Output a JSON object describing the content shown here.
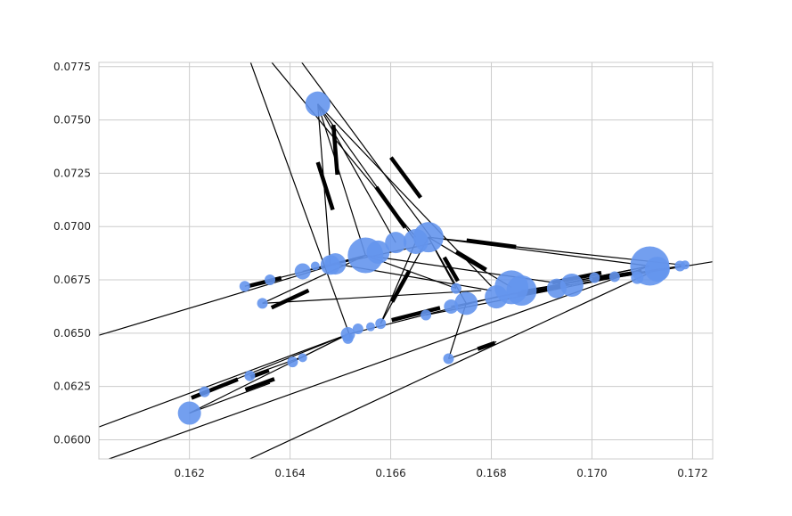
{
  "chart_data": {
    "type": "scatter",
    "subtype": "network-graph",
    "title": "",
    "xlabel": "",
    "ylabel": "",
    "xlim": [
      0.1602,
      0.1724
    ],
    "ylim": [
      0.0591,
      0.0777
    ],
    "grid": true,
    "x_ticks": [
      0.162,
      0.164,
      0.166,
      0.168,
      0.17,
      0.172
    ],
    "y_ticks": [
      0.06,
      0.0625,
      0.065,
      0.0675,
      0.07,
      0.0725,
      0.075,
      0.0775
    ],
    "x_tick_labels": [
      "0.162",
      "0.164",
      "0.166",
      "0.168",
      "0.170",
      "0.172"
    ],
    "y_tick_labels": [
      "0.0600",
      "0.0625",
      "0.0650",
      "0.0675",
      "0.0700",
      "0.0725",
      "0.0750",
      "0.0775"
    ],
    "node_color": "#6495ED",
    "edge_color": "#000000",
    "nodes": [
      {
        "id": 0,
        "x": 0.16455,
        "y": 0.07575,
        "r": 14
      },
      {
        "id": 1,
        "x": 0.16675,
        "y": 0.0695,
        "r": 17
      },
      {
        "id": 2,
        "x": 0.1665,
        "y": 0.0693,
        "r": 14
      },
      {
        "id": 3,
        "x": 0.1661,
        "y": 0.06925,
        "r": 12
      },
      {
        "id": 4,
        "x": 0.1655,
        "y": 0.06865,
        "r": 20
      },
      {
        "id": 5,
        "x": 0.16575,
        "y": 0.0688,
        "r": 13
      },
      {
        "id": 6,
        "x": 0.1649,
        "y": 0.06825,
        "r": 12
      },
      {
        "id": 7,
        "x": 0.1648,
        "y": 0.0682,
        "r": 11
      },
      {
        "id": 8,
        "x": 0.1645,
        "y": 0.06815,
        "r": 5
      },
      {
        "id": 9,
        "x": 0.16425,
        "y": 0.0679,
        "r": 9
      },
      {
        "id": 10,
        "x": 0.1636,
        "y": 0.0675,
        "r": 6
      },
      {
        "id": 11,
        "x": 0.1631,
        "y": 0.0672,
        "r": 6
      },
      {
        "id": 12,
        "x": 0.16345,
        "y": 0.0664,
        "r": 6
      },
      {
        "id": 13,
        "x": 0.17115,
        "y": 0.06815,
        "r": 22
      },
      {
        "id": 14,
        "x": 0.1713,
        "y": 0.068,
        "r": 14
      },
      {
        "id": 15,
        "x": 0.17175,
        "y": 0.06815,
        "r": 6
      },
      {
        "id": 16,
        "x": 0.17185,
        "y": 0.0682,
        "r": 5
      },
      {
        "id": 17,
        "x": 0.1709,
        "y": 0.0676,
        "r": 7
      },
      {
        "id": 18,
        "x": 0.17045,
        "y": 0.06765,
        "r": 6
      },
      {
        "id": 19,
        "x": 0.17005,
        "y": 0.0676,
        "r": 6
      },
      {
        "id": 20,
        "x": 0.1696,
        "y": 0.06725,
        "r": 13
      },
      {
        "id": 21,
        "x": 0.1693,
        "y": 0.0671,
        "r": 11
      },
      {
        "id": 22,
        "x": 0.1686,
        "y": 0.067,
        "r": 17
      },
      {
        "id": 23,
        "x": 0.1684,
        "y": 0.06715,
        "r": 19
      },
      {
        "id": 24,
        "x": 0.1681,
        "y": 0.0667,
        "r": 13
      },
      {
        "id": 25,
        "x": 0.1673,
        "y": 0.0671,
        "r": 6
      },
      {
        "id": 26,
        "x": 0.1675,
        "y": 0.0664,
        "r": 13
      },
      {
        "id": 27,
        "x": 0.1672,
        "y": 0.06625,
        "r": 8
      },
      {
        "id": 28,
        "x": 0.1667,
        "y": 0.06585,
        "r": 6
      },
      {
        "id": 29,
        "x": 0.1658,
        "y": 0.06545,
        "r": 6
      },
      {
        "id": 30,
        "x": 0.1656,
        "y": 0.0653,
        "r": 5
      },
      {
        "id": 31,
        "x": 0.16535,
        "y": 0.0652,
        "r": 6
      },
      {
        "id": 32,
        "x": 0.16515,
        "y": 0.06495,
        "r": 8
      },
      {
        "id": 33,
        "x": 0.16515,
        "y": 0.06475,
        "r": 6
      },
      {
        "id": 34,
        "x": 0.16425,
        "y": 0.06385,
        "r": 5
      },
      {
        "id": 35,
        "x": 0.16405,
        "y": 0.06365,
        "r": 6
      },
      {
        "id": 36,
        "x": 0.1632,
        "y": 0.063,
        "r": 6
      },
      {
        "id": 37,
        "x": 0.1623,
        "y": 0.06225,
        "r": 6
      },
      {
        "id": 38,
        "x": 0.162,
        "y": 0.06125,
        "r": 13
      },
      {
        "id": 39,
        "x": 0.16715,
        "y": 0.0638,
        "r": 6
      }
    ],
    "edges": [
      {
        "from": [
          0.16455,
          0.07575
        ],
        "to": [
          0.1655,
          0.06865
        ],
        "arrow": [
          0.1647,
          0.0719
        ]
      },
      {
        "from": [
          0.16455,
          0.07575
        ],
        "to": [
          0.1648,
          0.0682
        ],
        "arrow": [
          0.1649,
          0.0736
        ]
      },
      {
        "from": [
          0.16455,
          0.07575
        ],
        "to": [
          0.1665,
          0.0693
        ],
        "arrow": [
          0.166,
          0.0709
        ]
      },
      {
        "from": [
          0.16455,
          0.07575
        ],
        "to": [
          0.1661,
          0.06925
        ],
        "arrow": null
      },
      {
        "from": [
          0.16455,
          0.07575
        ],
        "to": [
          0.168,
          0.0672
        ],
        "arrow": null
      },
      {
        "from": [
          0.1632,
          0.0778
        ],
        "to": [
          0.1652,
          0.0648
        ],
        "arrow": null
      },
      {
        "from": [
          0.1636,
          0.0778
        ],
        "to": [
          0.1665,
          0.0695
        ],
        "arrow": null
      },
      {
        "from": [
          0.1642,
          0.0778
        ],
        "to": [
          0.1668,
          0.0695
        ],
        "arrow": [
          0.1663,
          0.0723
        ]
      },
      {
        "from": [
          0.16675,
          0.0695
        ],
        "to": [
          0.17115,
          0.06815
        ],
        "arrow": [
          0.168,
          0.0692
        ]
      },
      {
        "from": [
          0.16675,
          0.0695
        ],
        "to": [
          0.1718,
          0.0682
        ],
        "arrow": null
      },
      {
        "from": [
          0.16675,
          0.0695
        ],
        "to": [
          0.1684,
          0.06715
        ],
        "arrow": [
          0.1676,
          0.0684
        ]
      },
      {
        "from": [
          0.16675,
          0.0695
        ],
        "to": [
          0.1675,
          0.0664
        ],
        "arrow": [
          0.1672,
          0.068
        ]
      },
      {
        "from": [
          0.16675,
          0.0695
        ],
        "to": [
          0.1658,
          0.06545
        ],
        "arrow": [
          0.1662,
          0.0672
        ]
      },
      {
        "from": [
          0.16675,
          0.0695
        ],
        "to": [
          0.1673,
          0.0671
        ],
        "arrow": null
      },
      {
        "from": [
          0.1655,
          0.06865
        ],
        "to": [
          0.1696,
          0.06725
        ],
        "arrow": null
      },
      {
        "from": [
          0.1655,
          0.06865
        ],
        "to": [
          0.16425,
          0.0679
        ],
        "arrow": null
      },
      {
        "from": [
          0.1655,
          0.06865
        ],
        "to": [
          0.1673,
          0.0671
        ],
        "arrow": null
      },
      {
        "from": [
          0.1649,
          0.06825
        ],
        "to": [
          0.168,
          0.067
        ],
        "arrow": null
      },
      {
        "from": [
          0.1649,
          0.06825
        ],
        "to": [
          0.1668,
          0.0692
        ],
        "arrow": null
      },
      {
        "from": [
          0.1649,
          0.06825
        ],
        "to": [
          0.1631,
          0.0672
        ],
        "arrow": [
          0.1635,
          0.0674
        ]
      },
      {
        "from": [
          0.16345,
          0.0664
        ],
        "to": [
          0.1655,
          0.06865
        ],
        "arrow": [
          0.164,
          0.0666
        ]
      },
      {
        "from": [
          0.16345,
          0.0664
        ],
        "to": [
          0.1678,
          0.067
        ],
        "arrow": null
      },
      {
        "from": [
          0.1602,
          0.0649
        ],
        "to": [
          0.1655,
          0.06865
        ],
        "arrow": null
      },
      {
        "from": [
          0.1681,
          0.0667
        ],
        "to": [
          0.1724,
          0.06835
        ],
        "arrow": null
      },
      {
        "from": [
          0.1681,
          0.0667
        ],
        "to": [
          0.17115,
          0.06815
        ],
        "arrow": [
          0.1697,
          0.0676
        ]
      },
      {
        "from": [
          0.1686,
          0.067
        ],
        "to": [
          0.1719,
          0.0682
        ],
        "arrow": [
          0.1705,
          0.0677
        ]
      },
      {
        "from": [
          0.1672,
          0.06625
        ],
        "to": [
          0.17115,
          0.06815
        ],
        "arrow": null
      },
      {
        "from": [
          0.1667,
          0.06585
        ],
        "to": [
          0.1713,
          0.068
        ],
        "arrow": [
          0.169,
          0.067
        ]
      },
      {
        "from": [
          0.16515,
          0.06495
        ],
        "to": [
          0.1681,
          0.0667
        ],
        "arrow": [
          0.1665,
          0.0659
        ]
      },
      {
        "from": [
          0.1602,
          0.0606
        ],
        "to": [
          0.16515,
          0.06495
        ],
        "arrow": null
      },
      {
        "from": [
          0.1604,
          0.0591
        ],
        "to": [
          0.17115,
          0.06815
        ],
        "arrow": null
      },
      {
        "from": [
          0.1632,
          0.0591
        ],
        "to": [
          0.1713,
          0.068
        ],
        "arrow": null
      },
      {
        "from": [
          0.162,
          0.06125
        ],
        "to": [
          0.1636,
          0.06265
        ],
        "arrow": [
          0.1634,
          0.0626
        ]
      },
      {
        "from": [
          0.162,
          0.06125
        ],
        "to": [
          0.16515,
          0.06495
        ],
        "arrow": null
      },
      {
        "from": [
          0.1623,
          0.06225
        ],
        "to": [
          0.16515,
          0.06495
        ],
        "arrow": [
          0.1625,
          0.0624
        ]
      },
      {
        "from": [
          0.1632,
          0.063
        ],
        "to": [
          0.1642,
          0.06385
        ],
        "arrow": [
          0.1634,
          0.0631
        ]
      },
      {
        "from": [
          0.16405,
          0.06365
        ],
        "to": [
          0.16515,
          0.06495
        ],
        "arrow": null
      },
      {
        "from": [
          0.1658,
          0.06545
        ],
        "to": [
          0.1665,
          0.0693
        ],
        "arrow": null
      },
      {
        "from": [
          0.16715,
          0.0638
        ],
        "to": [
          0.1681,
          0.0646
        ],
        "arrow": [
          0.1679,
          0.0644
        ]
      },
      {
        "from": [
          0.16715,
          0.0638
        ],
        "to": [
          0.1675,
          0.0664
        ],
        "arrow": null
      }
    ]
  }
}
